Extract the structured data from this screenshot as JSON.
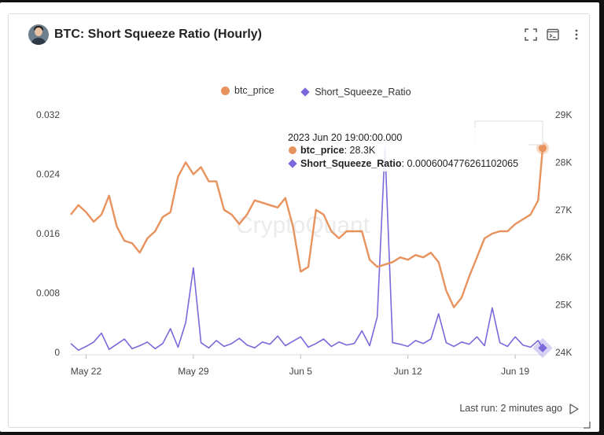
{
  "card": {
    "title": "BTC: Short Squeeze Ratio (Hourly)",
    "footer_text": "Last run: 2 minutes ago"
  },
  "icons": {
    "avatar": "author-avatar",
    "expand": "expand-icon",
    "console": "console-icon",
    "more": "more-vertical-icon",
    "run": "play-icon"
  },
  "watermark": "CryptoQuant",
  "chart_data": {
    "type": "line",
    "x_type": "date",
    "x_tick_labels": [
      "May 22",
      "May 29",
      "Jun 5",
      "Jun 12",
      "Jun 19"
    ],
    "x_ticks": [
      "2023-05-22",
      "2023-05-29",
      "2023-06-05",
      "2023-06-12",
      "2023-06-19"
    ],
    "x_range": [
      "2023-05-21 00:00",
      "2023-06-20 19:00"
    ],
    "y_left": {
      "label": "",
      "ylim": [
        0,
        0.032
      ],
      "ticks": [
        0,
        0.008,
        0.016,
        0.024,
        0.032
      ],
      "tick_labels": [
        "0",
        "0.008",
        "0.016",
        "0.024",
        "0.032"
      ]
    },
    "y_right": {
      "label": "",
      "ylim": [
        24000,
        29000
      ],
      "ticks": [
        24000,
        25000,
        26000,
        27000,
        28000,
        29000
      ],
      "tick_labels": [
        "24K",
        "25K",
        "26K",
        "27K",
        "28K",
        "29K"
      ]
    },
    "legend_placement": "top-center",
    "grid": false,
    "series": [
      {
        "name": "btc_price",
        "axis": "right",
        "color": "#e8935e",
        "x": [
          "2023-05-21 00:00",
          "2023-05-21 12:00",
          "2023-05-22 00:00",
          "2023-05-22 12:00",
          "2023-05-23 00:00",
          "2023-05-23 12:00",
          "2023-05-24 00:00",
          "2023-05-24 12:00",
          "2023-05-25 00:00",
          "2023-05-25 12:00",
          "2023-05-26 00:00",
          "2023-05-26 12:00",
          "2023-05-27 00:00",
          "2023-05-27 12:00",
          "2023-05-28 00:00",
          "2023-05-28 12:00",
          "2023-05-29 00:00",
          "2023-05-29 12:00",
          "2023-05-30 00:00",
          "2023-05-30 12:00",
          "2023-05-31 00:00",
          "2023-05-31 12:00",
          "2023-06-01 00:00",
          "2023-06-01 12:00",
          "2023-06-02 00:00",
          "2023-06-02 12:00",
          "2023-06-03 00:00",
          "2023-06-03 12:00",
          "2023-06-04 00:00",
          "2023-06-04 12:00",
          "2023-06-05 00:00",
          "2023-06-05 12:00",
          "2023-06-06 00:00",
          "2023-06-06 12:00",
          "2023-06-07 00:00",
          "2023-06-07 12:00",
          "2023-06-08 00:00",
          "2023-06-08 12:00",
          "2023-06-09 00:00",
          "2023-06-09 12:00",
          "2023-06-10 00:00",
          "2023-06-10 12:00",
          "2023-06-11 00:00",
          "2023-06-11 12:00",
          "2023-06-12 00:00",
          "2023-06-12 12:00",
          "2023-06-13 00:00",
          "2023-06-13 12:00",
          "2023-06-14 00:00",
          "2023-06-14 12:00",
          "2023-06-15 00:00",
          "2023-06-15 12:00",
          "2023-06-16 00:00",
          "2023-06-16 12:00",
          "2023-06-17 00:00",
          "2023-06-17 12:00",
          "2023-06-18 00:00",
          "2023-06-18 12:00",
          "2023-06-19 00:00",
          "2023-06-19 12:00",
          "2023-06-20 00:00",
          "2023-06-20 12:00",
          "2023-06-20 19:00"
        ],
        "values": [
          26900,
          27100,
          26950,
          26750,
          26900,
          27300,
          26650,
          26350,
          26300,
          26100,
          26400,
          26550,
          26850,
          26950,
          27700,
          28000,
          27750,
          27900,
          27600,
          27600,
          27000,
          26900,
          26700,
          26900,
          27200,
          27150,
          27100,
          27050,
          27250,
          26650,
          25700,
          25800,
          27000,
          26900,
          26550,
          26400,
          26550,
          26550,
          26550,
          25950,
          25800,
          25850,
          25900,
          26000,
          25950,
          26050,
          26000,
          26100,
          25900,
          25300,
          24950,
          25150,
          25600,
          26000,
          26400,
          26500,
          26550,
          26550,
          26700,
          26800,
          26900,
          27200,
          28300
        ]
      },
      {
        "name": "Short_Squeeze_Ratio",
        "axis": "left",
        "color": "#7b68db",
        "x": [
          "2023-05-21 00:00",
          "2023-05-21 12:00",
          "2023-05-22 00:00",
          "2023-05-22 12:00",
          "2023-05-23 00:00",
          "2023-05-23 12:00",
          "2023-05-24 00:00",
          "2023-05-24 12:00",
          "2023-05-25 00:00",
          "2023-05-25 12:00",
          "2023-05-26 00:00",
          "2023-05-26 12:00",
          "2023-05-27 00:00",
          "2023-05-27 12:00",
          "2023-05-28 00:00",
          "2023-05-28 12:00",
          "2023-05-29 00:00",
          "2023-05-29 12:00",
          "2023-05-30 00:00",
          "2023-05-30 12:00",
          "2023-05-31 00:00",
          "2023-05-31 12:00",
          "2023-06-01 00:00",
          "2023-06-01 12:00",
          "2023-06-02 00:00",
          "2023-06-02 12:00",
          "2023-06-03 00:00",
          "2023-06-03 12:00",
          "2023-06-04 00:00",
          "2023-06-04 12:00",
          "2023-06-05 00:00",
          "2023-06-05 12:00",
          "2023-06-06 00:00",
          "2023-06-06 12:00",
          "2023-06-07 00:00",
          "2023-06-07 12:00",
          "2023-06-08 00:00",
          "2023-06-08 12:00",
          "2023-06-09 00:00",
          "2023-06-09 12:00",
          "2023-06-10 00:00",
          "2023-06-10 12:00",
          "2023-06-11 00:00",
          "2023-06-11 12:00",
          "2023-06-12 00:00",
          "2023-06-12 12:00",
          "2023-06-13 00:00",
          "2023-06-13 12:00",
          "2023-06-14 00:00",
          "2023-06-14 12:00",
          "2023-06-15 00:00",
          "2023-06-15 12:00",
          "2023-06-16 00:00",
          "2023-06-16 12:00",
          "2023-06-17 00:00",
          "2023-06-17 12:00",
          "2023-06-18 00:00",
          "2023-06-18 12:00",
          "2023-06-19 00:00",
          "2023-06-19 12:00",
          "2023-06-20 00:00",
          "2023-06-20 12:00",
          "2023-06-20 19:00"
        ],
        "values": [
          0.0012,
          0.0003,
          0.0008,
          0.0014,
          0.0026,
          0.0004,
          0.0011,
          0.0018,
          0.0005,
          0.0009,
          0.0014,
          0.0005,
          0.0012,
          0.0032,
          0.0007,
          0.004,
          0.0114,
          0.0013,
          0.0006,
          0.0016,
          0.0008,
          0.0012,
          0.0019,
          0.001,
          0.0006,
          0.0014,
          0.0011,
          0.0022,
          0.0009,
          0.0015,
          0.0021,
          0.0007,
          0.0012,
          0.0018,
          0.0008,
          0.0014,
          0.001,
          0.0012,
          0.0029,
          0.0009,
          0.0048,
          0.0276,
          0.0013,
          0.0011,
          0.0008,
          0.0016,
          0.0012,
          0.0018,
          0.0052,
          0.0013,
          0.0008,
          0.0014,
          0.0011,
          0.0021,
          0.0009,
          0.006,
          0.0013,
          0.0008,
          0.0021,
          0.001,
          0.0007,
          0.0016,
          0.0006
        ]
      }
    ],
    "tooltip": {
      "date": "2023 Jun 20 19:00:00.000",
      "rows": [
        {
          "name": "btc_price",
          "value": "28.3K",
          "color": "#e8935e",
          "marker": "dot"
        },
        {
          "name": "Short_Squeeze_Ratio",
          "value": "0.0006004776261102065",
          "color": "#7b68db",
          "marker": "diamond"
        }
      ]
    }
  }
}
